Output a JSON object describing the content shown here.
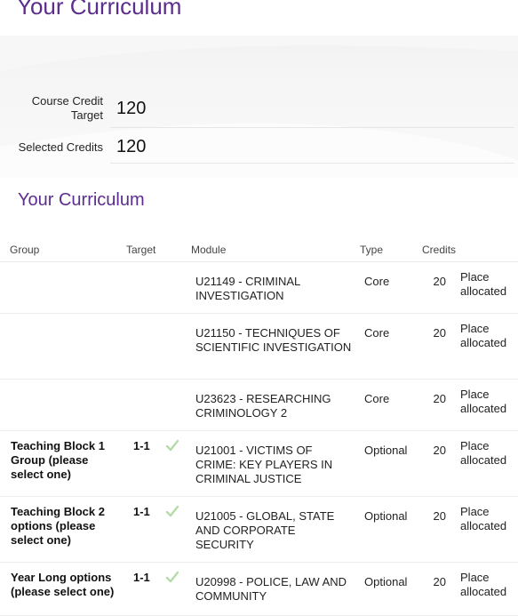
{
  "header": {
    "title": "Your Curriculum"
  },
  "credits": {
    "target_label": "Course Credit Target",
    "target_value": "120",
    "selected_label": "Selected Credits",
    "selected_value": "120"
  },
  "curriculum": {
    "title": "Your Curriculum",
    "columns": {
      "group": "Group",
      "target": "Target",
      "module": "Module",
      "type": "Type",
      "credits": "Credits"
    },
    "rows": [
      {
        "group": "",
        "target": "",
        "checked": false,
        "module": "U21149 - CRIMINAL INVESTIGATION",
        "type": "Core",
        "credits": "20",
        "status": "Place allocated"
      },
      {
        "group": "",
        "target": "",
        "checked": false,
        "module": "U21150 - TECHNIQUES OF SCIENTIFIC INVESTIGATION",
        "type": "Core",
        "credits": "20",
        "status": "Place allocated"
      },
      {
        "group": "",
        "target": "",
        "checked": false,
        "module": "U23623 - RESEARCHING CRIMINOLOGY 2",
        "type": "Core",
        "credits": "20",
        "status": "Place allocated"
      },
      {
        "group": "Teaching Block 1 Group (please select one)",
        "target": "1-1",
        "checked": true,
        "module": "U21001 - VICTIMS OF CRIME: KEY PLAYERS IN CRIMINAL JUSTICE",
        "type": "Optional",
        "credits": "20",
        "status": "Place allocated"
      },
      {
        "group": "Teaching Block 2 options (please select one)",
        "target": "1-1",
        "checked": true,
        "module": "U21005 - GLOBAL, STATE AND CORPORATE SECURITY",
        "type": "Optional",
        "credits": "20",
        "status": "Place allocated"
      },
      {
        "group": "Year Long options (please select one)",
        "target": "1-1",
        "checked": true,
        "module": "U20998 - POLICE, LAW AND COMMUNITY",
        "type": "Optional",
        "credits": "20",
        "status": "Place allocated"
      }
    ]
  },
  "colors": {
    "title_purple": "#5b2d8e",
    "check_green": "#b5dba8"
  }
}
